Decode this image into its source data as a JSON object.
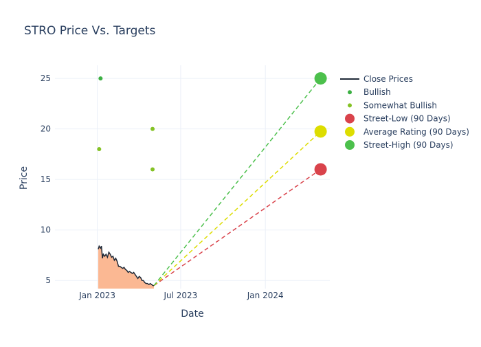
{
  "chart_data": {
    "type": "line",
    "title": "STRO Price Vs. Targets",
    "xlabel": "Date",
    "ylabel": "Price",
    "x_range": [
      "2022-10-01",
      "2024-05-20"
    ],
    "y_range": [
      4.2,
      26.3
    ],
    "x_ticks": [
      {
        "date": "2023-01-01",
        "label": "Jan 2023"
      },
      {
        "date": "2023-07-01",
        "label": "Jul 2023"
      },
      {
        "date": "2024-01-01",
        "label": "Jan 2024"
      }
    ],
    "y_ticks": [
      5,
      10,
      15,
      20,
      25
    ],
    "grid": true,
    "legend_position": "top-right",
    "close_prices": {
      "name": "Close Prices",
      "color": "#1f2937",
      "fill_color": "#fbb893",
      "x": [
        "2023-01-03",
        "2023-01-05",
        "2023-01-08",
        "2023-01-10",
        "2023-01-12",
        "2023-01-14",
        "2023-01-17",
        "2023-01-20",
        "2023-01-23",
        "2023-01-26",
        "2023-01-29",
        "2023-02-01",
        "2023-02-04",
        "2023-02-07",
        "2023-02-10",
        "2023-02-13",
        "2023-02-16",
        "2023-02-19",
        "2023-02-22",
        "2023-02-25",
        "2023-02-28",
        "2023-03-03",
        "2023-03-06",
        "2023-03-09",
        "2023-03-12",
        "2023-03-15",
        "2023-03-18",
        "2023-03-21",
        "2023-03-24",
        "2023-03-27",
        "2023-03-30",
        "2023-04-02",
        "2023-04-05",
        "2023-04-08",
        "2023-04-11",
        "2023-04-14",
        "2023-04-17",
        "2023-04-20",
        "2023-04-23",
        "2023-04-26",
        "2023-04-29",
        "2023-05-02",
        "2023-05-04"
      ],
      "y": [
        8.1,
        8.4,
        8.2,
        8.4,
        7.2,
        7.6,
        7.4,
        7.6,
        7.3,
        7.8,
        7.6,
        7.3,
        7.4,
        7.0,
        7.2,
        6.9,
        6.4,
        6.4,
        6.3,
        6.2,
        6.3,
        6.1,
        6.0,
        5.8,
        5.9,
        5.8,
        5.7,
        5.8,
        5.6,
        5.4,
        5.2,
        5.4,
        5.3,
        5.0,
        5.0,
        4.8,
        4.7,
        4.7,
        4.6,
        4.7,
        4.6,
        4.5,
        4.5
      ]
    },
    "ratings": [
      {
        "name": "Bullish",
        "color": "#3cb043",
        "points": [
          {
            "x": "2023-01-08",
            "y": 25
          }
        ]
      },
      {
        "name": "Somewhat Bullish",
        "color": "#84c225",
        "points": [
          {
            "x": "2023-01-05",
            "y": 18
          },
          {
            "x": "2023-05-01",
            "y": 20
          },
          {
            "x": "2023-05-01",
            "y": 16
          }
        ]
      }
    ],
    "targets": [
      {
        "name": "Street-Low (90 Days)",
        "color": "#d9434b",
        "value": 16,
        "date": "2024-04-30"
      },
      {
        "name": "Average Rating (90 Days)",
        "color": "#dddd00",
        "value": 19.75,
        "date": "2024-04-30"
      },
      {
        "name": "Street-High (90 Days)",
        "color": "#4cc04c",
        "value": 25,
        "date": "2024-04-30"
      }
    ],
    "target_line_origin": {
      "x": "2023-05-04",
      "y": 4.5
    }
  }
}
